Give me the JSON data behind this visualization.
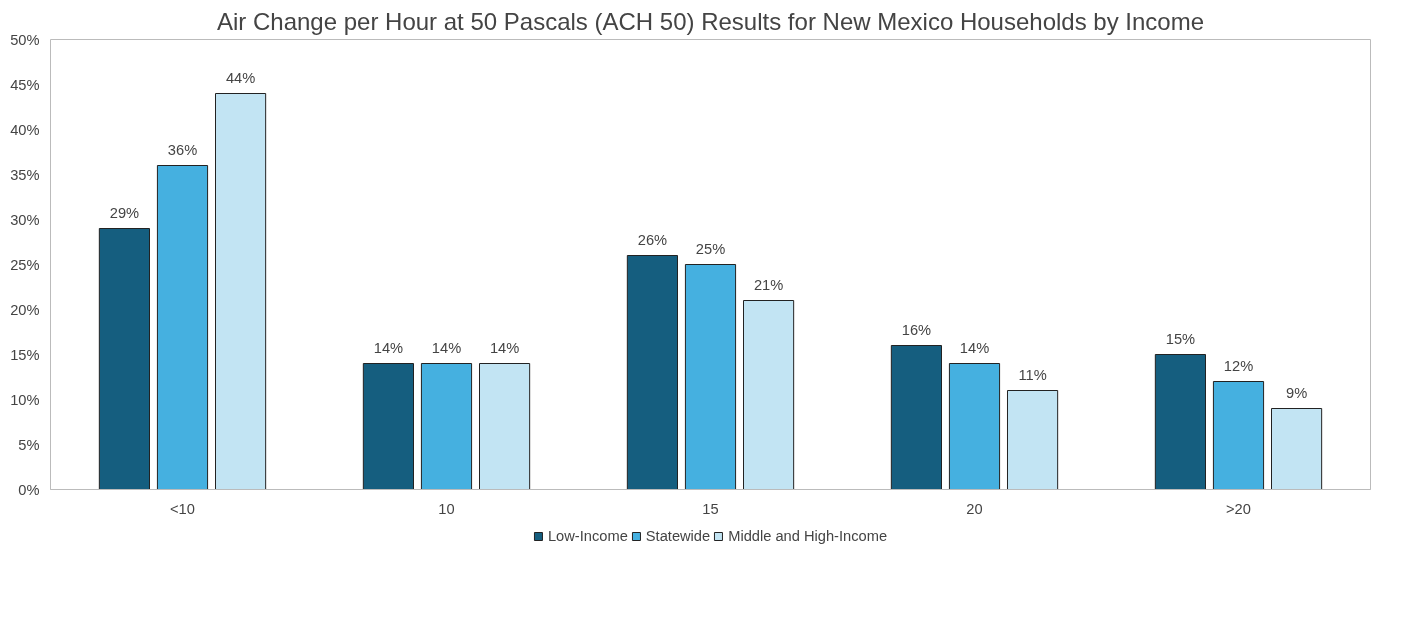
{
  "chart_data": {
    "type": "bar",
    "title": "Air Change per Hour at 50 Pascals (ACH 50) Results for New Mexico Households by Income",
    "categories": [
      "<10",
      "10",
      "15",
      "20",
      ">20"
    ],
    "series": [
      {
        "name": "Low-Income",
        "color": "#155e7f",
        "values": [
          29,
          14,
          26,
          16,
          15
        ],
        "value_labels": [
          "29%",
          "14%",
          "26%",
          "16%",
          "15%"
        ]
      },
      {
        "name": "Statewide",
        "color": "#45b0e0",
        "values": [
          36,
          14,
          25,
          14,
          12
        ],
        "value_labels": [
          "36%",
          "14%",
          "25%",
          "14%",
          "12%"
        ]
      },
      {
        "name": "Middle and High-Income",
        "color": "#c2e4f3",
        "values": [
          44,
          14,
          21,
          11,
          9
        ],
        "value_labels": [
          "44%",
          "14%",
          "21%",
          "11%",
          "9%"
        ]
      }
    ],
    "ylim": [
      0,
      50
    ],
    "yticks": [
      {
        "value": 0,
        "label": "0%"
      },
      {
        "value": 5,
        "label": "5%"
      },
      {
        "value": 10,
        "label": "10%"
      },
      {
        "value": 15,
        "label": "15%"
      },
      {
        "value": 20,
        "label": "20%"
      },
      {
        "value": 25,
        "label": "25%"
      },
      {
        "value": 30,
        "label": "30%"
      },
      {
        "value": 35,
        "label": "35%"
      },
      {
        "value": 40,
        "label": "40%"
      },
      {
        "value": 45,
        "label": "45%"
      },
      {
        "value": 50,
        "label": "50%"
      }
    ],
    "grid": false,
    "legend": "bottom"
  }
}
